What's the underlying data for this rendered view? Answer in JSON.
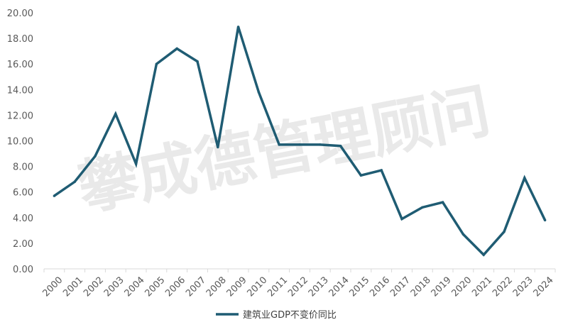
{
  "chart_data": {
    "type": "line",
    "x": [
      "2000",
      "2001",
      "2002",
      "2003",
      "2004",
      "2005",
      "2006",
      "2007",
      "2008",
      "2009",
      "2010",
      "2011",
      "2012",
      "2013",
      "2014",
      "2015",
      "2016",
      "2017",
      "2018",
      "2019",
      "2020",
      "2021",
      "2022",
      "2023",
      "2024"
    ],
    "series": [
      {
        "name": "建筑业GDP不变价同比",
        "values": [
          5.7,
          6.8,
          8.8,
          12.1,
          8.2,
          16.0,
          17.2,
          16.2,
          9.5,
          18.9,
          13.8,
          9.7,
          9.7,
          9.7,
          9.6,
          7.3,
          7.7,
          3.9,
          4.8,
          5.2,
          2.7,
          1.1,
          2.9,
          7.1,
          3.8
        ]
      }
    ],
    "ylim": [
      0,
      20
    ],
    "yticks": [
      "0.00",
      "2.00",
      "4.00",
      "6.00",
      "8.00",
      "10.00",
      "12.00",
      "14.00",
      "16.00",
      "18.00",
      "20.00"
    ],
    "grid": false,
    "legend": "bottom",
    "line_color": "#1f5c73"
  },
  "watermark": "攀成德管理顾问"
}
